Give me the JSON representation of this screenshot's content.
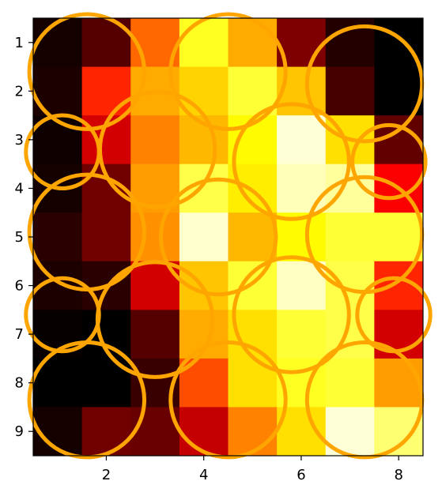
{
  "chart_data": {
    "type": "heatmap",
    "title": "",
    "xlabel": "",
    "ylabel": "",
    "colormap": "hot",
    "x_ticks": [
      "2",
      "4",
      "6",
      "8"
    ],
    "y_ticks": [
      "1",
      "2",
      "3",
      "4",
      "5",
      "6",
      "7",
      "8",
      "9"
    ],
    "xlim": [
      0.5,
      8.5
    ],
    "ylim": [
      9.5,
      0.5
    ],
    "columns": [
      1,
      2,
      3,
      4,
      5,
      6,
      7,
      8
    ],
    "rows": [
      1,
      2,
      3,
      4,
      5,
      6,
      7,
      8,
      9
    ],
    "values": [
      [
        0.03,
        0.12,
        0.52,
        0.78,
        0.62,
        0.18,
        0.05,
        0.0
      ],
      [
        0.04,
        0.42,
        0.62,
        0.68,
        0.8,
        0.66,
        0.1,
        0.0
      ],
      [
        0.02,
        0.3,
        0.56,
        0.64,
        0.74,
        0.96,
        0.7,
        0.14
      ],
      [
        0.03,
        0.16,
        0.6,
        0.82,
        0.72,
        0.93,
        0.9,
        0.36
      ],
      [
        0.06,
        0.16,
        0.58,
        0.95,
        0.64,
        0.74,
        0.8,
        0.8
      ],
      [
        0.04,
        0.06,
        0.3,
        0.66,
        0.8,
        0.94,
        0.82,
        0.42
      ],
      [
        0.01,
        0.0,
        0.12,
        0.62,
        0.7,
        0.8,
        0.82,
        0.3
      ],
      [
        0.0,
        0.0,
        0.08,
        0.48,
        0.7,
        0.78,
        0.8,
        0.6
      ],
      [
        0.03,
        0.16,
        0.15,
        0.28,
        0.56,
        0.7,
        0.96,
        0.86
      ]
    ],
    "circles": [
      {
        "x": 1.6,
        "y": 1.6,
        "r": 1.18
      },
      {
        "x": 4.5,
        "y": 1.6,
        "r": 1.18
      },
      {
        "x": 7.3,
        "y": 1.85,
        "r": 1.18
      },
      {
        "x": 1.1,
        "y": 3.25,
        "r": 0.75
      },
      {
        "x": 3.05,
        "y": 3.2,
        "r": 1.18
      },
      {
        "x": 5.8,
        "y": 3.45,
        "r": 1.18
      },
      {
        "x": 7.8,
        "y": 3.45,
        "r": 0.75
      },
      {
        "x": 1.6,
        "y": 4.9,
        "r": 1.18
      },
      {
        "x": 4.3,
        "y": 5.0,
        "r": 1.18
      },
      {
        "x": 7.3,
        "y": 4.95,
        "r": 1.18
      },
      {
        "x": 1.1,
        "y": 6.6,
        "r": 0.75
      },
      {
        "x": 3.0,
        "y": 6.7,
        "r": 1.18
      },
      {
        "x": 5.8,
        "y": 6.6,
        "r": 1.18
      },
      {
        "x": 7.9,
        "y": 6.6,
        "r": 0.75
      },
      {
        "x": 1.6,
        "y": 8.35,
        "r": 1.18
      },
      {
        "x": 4.5,
        "y": 8.35,
        "r": 1.18
      },
      {
        "x": 7.3,
        "y": 8.35,
        "r": 1.18
      }
    ],
    "circle_color": "#ffa500",
    "grid": false,
    "legend": "none"
  }
}
